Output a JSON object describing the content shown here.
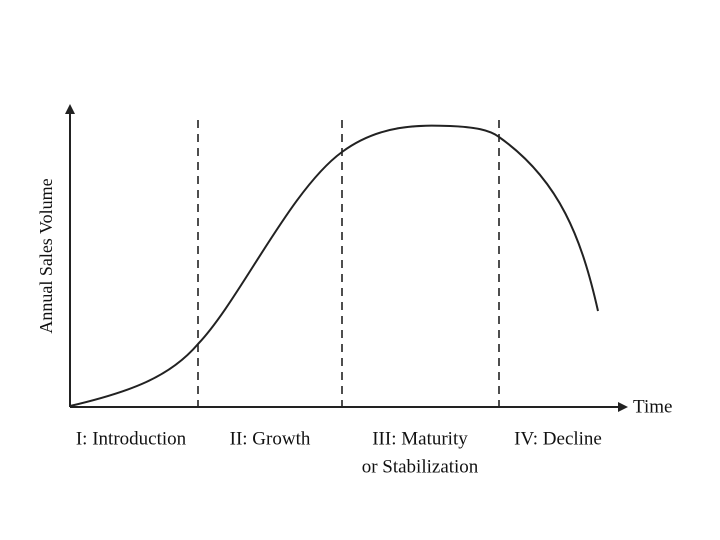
{
  "axes": {
    "y_label": "Annual Sales Volume",
    "x_label": "Time"
  },
  "stages": [
    {
      "lines": [
        "I: Introduction"
      ]
    },
    {
      "lines": [
        "II:  Growth"
      ]
    },
    {
      "lines": [
        "III:  Maturity",
        "or Stabilization"
      ]
    },
    {
      "lines": [
        "IV:  Decline"
      ]
    }
  ]
}
